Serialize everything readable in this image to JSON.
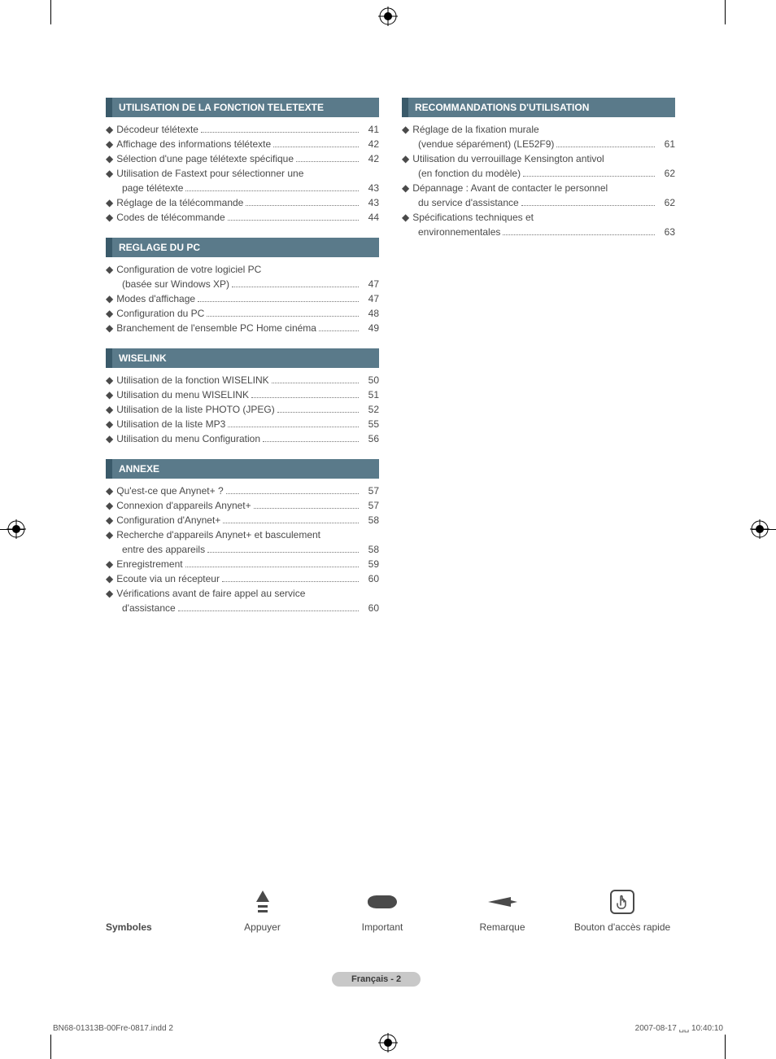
{
  "colors": {
    "section_header_bg": "#5a7a8a",
    "section_header_border": "#3a5a6a",
    "section_header_text": "#ffffff",
    "body_text": "#4a4a4a",
    "page_badge_bg": "#c8c8c8",
    "background": "#ffffff"
  },
  "typography": {
    "body_fontsize": 12,
    "header_fontsize": 12,
    "footer_fontsize": 10,
    "badge_fontsize": 11
  },
  "sections": {
    "teletexte": {
      "title": "UTILISATION DE LA FONCTION TELETEXTE",
      "items": [
        {
          "label": "Décodeur télétexte",
          "page": "41"
        },
        {
          "label": "Affichage des informations télétexte",
          "page": "42"
        },
        {
          "label": "Sélection d'une page télétexte spécifique",
          "page": "42"
        },
        {
          "label": "Utilisation de Fastext pour sélectionner une",
          "page": ""
        },
        {
          "sub": true,
          "label": "page télétexte",
          "page": "43"
        },
        {
          "label": "Réglage de la télécommande",
          "page": "43"
        },
        {
          "label": "Codes de télécommande",
          "page": "44"
        }
      ]
    },
    "pc": {
      "title": "REGLAGE DU PC",
      "items": [
        {
          "label": "Configuration de votre logiciel PC",
          "page": ""
        },
        {
          "sub": true,
          "label": "(basée sur Windows XP)",
          "page": "47"
        },
        {
          "label": "Modes d'affichage",
          "page": "47"
        },
        {
          "label": "Configuration du PC",
          "page": "48"
        },
        {
          "label": "Branchement de l'ensemble PC Home cinéma",
          "page": "49"
        }
      ]
    },
    "wiselink": {
      "title": "WISELINK",
      "items": [
        {
          "label": "Utilisation de la fonction WISELINK",
          "page": "50"
        },
        {
          "label": "Utilisation du menu WISELINK",
          "page": "51"
        },
        {
          "label": "Utilisation de la liste PHOTO (JPEG)",
          "page": "52"
        },
        {
          "label": "Utilisation de la liste MP3",
          "page": "55"
        },
        {
          "label": "Utilisation du menu Configuration",
          "page": "56"
        }
      ]
    },
    "annexe": {
      "title": "ANNEXE",
      "items": [
        {
          "label": "Qu'est-ce que Anynet+ ?",
          "page": "57"
        },
        {
          "label": "Connexion d'appareils Anynet+",
          "page": "57"
        },
        {
          "label": "Configuration d'Anynet+",
          "page": "58"
        },
        {
          "label": "Recherche d'appareils Anynet+ et basculement",
          "page": ""
        },
        {
          "sub": true,
          "label": "entre des appareils",
          "page": "58"
        },
        {
          "label": "Enregistrement",
          "page": "59"
        },
        {
          "label": "Ecoute via un récepteur",
          "page": "60"
        },
        {
          "label": "Vérifications avant de faire appel au service",
          "page": ""
        },
        {
          "sub": true,
          "label": "d'assistance",
          "page": "60"
        }
      ]
    },
    "recommandations": {
      "title": "RECOMMANDATIONS D'UTILISATION",
      "items": [
        {
          "label": "Réglage de la fixation murale",
          "page": ""
        },
        {
          "sub": true,
          "label": "(vendue séparément) (LE52F9)",
          "page": "61"
        },
        {
          "label": "Utilisation du verrouillage Kensington antivol",
          "page": ""
        },
        {
          "sub": true,
          "label": "(en fonction du modèle)",
          "page": "62"
        },
        {
          "label": "Dépannage : Avant de contacter le personnel",
          "page": ""
        },
        {
          "sub": true,
          "label": "du service d'assistance",
          "page": "62"
        },
        {
          "label": "Spécifications techniques et",
          "page": ""
        },
        {
          "sub": true,
          "label": "environnementales",
          "page": "63"
        }
      ]
    }
  },
  "symbols": {
    "heading": "Symboles",
    "items": [
      {
        "label": "Appuyer",
        "icon": "press"
      },
      {
        "label": "Important",
        "icon": "important"
      },
      {
        "label": "Remarque",
        "icon": "remark"
      },
      {
        "label": "Bouton d'accès rapide",
        "icon": "quick"
      }
    ]
  },
  "page_badge": "Français - 2",
  "footer": {
    "left": "BN68-01313B-00Fre-0817.indd   2",
    "right": "2007-08-17   ␣␣ 10:40:10"
  }
}
